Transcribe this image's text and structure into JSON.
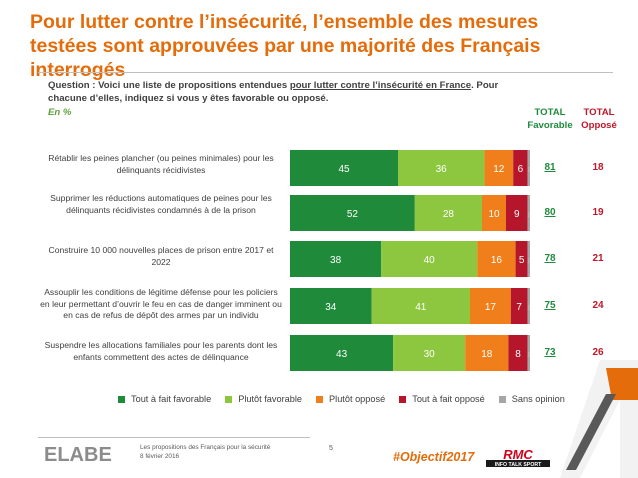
{
  "header": {
    "title": "Pour lutter contre l’insécurité, l’ensemble des mesures testées sont approuvées par une majorité des Français interrogés",
    "question_prefix": "Question :  Voici une liste de propositions entendues ",
    "question_link": "pour lutter contre l’insécurité en France",
    "question_suffix": ".  Pour chacune d’elles, indiquez si vous y êtes favorable ou opposé.",
    "unit": "En  %"
  },
  "columns": {
    "favorable": "TOTAL Favorable",
    "oppose": "TOTAL Opposé"
  },
  "colors": {
    "tout_a_fait_favorable": "#1e8a3a",
    "plutot_favorable": "#8dc63f",
    "plutot_oppose": "#f07f1b",
    "tout_a_fait_oppose": "#b5162b",
    "sans_opinion": "#a6a6a6",
    "title": "#e46c0a"
  },
  "chart_data": {
    "type": "bar",
    "orientation": "horizontal",
    "stacked": true,
    "categories": [
      "Rétablir les peines plancher (ou peines minimales) pour les délinquants récidivistes",
      "Supprimer les réductions automatiques de peines pour les délinquants récidivistes condamnés à de la prison",
      "Construire 10 000 nouvelles places de prison entre 2017 et 2022",
      "Assouplir les conditions de légitime défense pour les policiers en leur permettant d’ouvrir le feu en cas de danger imminent ou en cas de refus de dépôt des armes par un individu",
      "Suspendre les allocations familiales pour les parents dont les enfants commettent des actes de délinquance"
    ],
    "series": [
      {
        "name": "Tout à fait favorable",
        "values": [
          45,
          52,
          38,
          34,
          43
        ]
      },
      {
        "name": "Plutôt favorable",
        "values": [
          36,
          28,
          40,
          41,
          30
        ]
      },
      {
        "name": "Plutôt opposé",
        "values": [
          12,
          10,
          16,
          17,
          18
        ]
      },
      {
        "name": "Tout à fait opposé",
        "values": [
          6,
          9,
          5,
          7,
          8
        ]
      },
      {
        "name": "Sans opinion",
        "values": [
          1,
          1,
          1,
          1,
          1
        ]
      }
    ],
    "total_favorable": [
      "81",
      "80",
      "78",
      "75",
      "73"
    ],
    "total_oppose": [
      "18",
      "19",
      "21",
      "24",
      "26"
    ],
    "legend_position": "bottom"
  },
  "footer": {
    "line1": "Les propositions des Français pour la sécurité",
    "line2": "8 février 2016",
    "page": "5",
    "hashtag": "#Objectif2017",
    "brand": "ELABE",
    "partner_line1": "RMC",
    "partner_line2": "INFO TALK SPORT"
  }
}
